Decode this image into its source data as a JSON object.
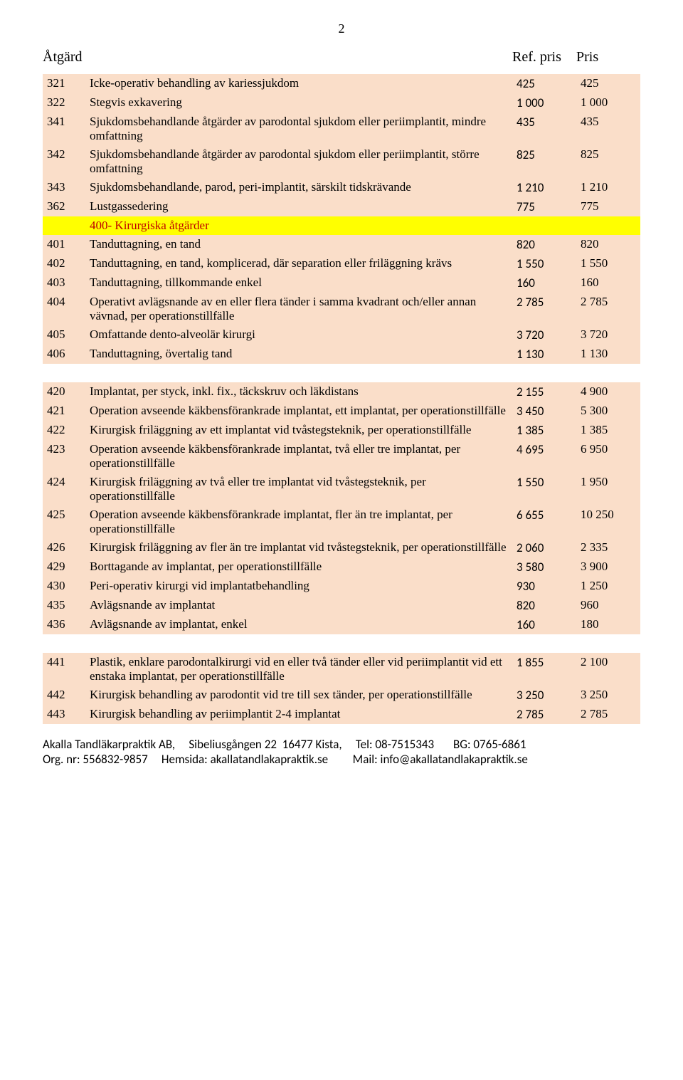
{
  "page_number": "2",
  "header": {
    "atgard": "Åtgärd",
    "refpris": "Ref. pris",
    "pris": "Pris"
  },
  "colors": {
    "row_normal": "#fadec9",
    "row_section": "#ffff00",
    "section_text": "#c00000",
    "row_white": "#ffffff"
  },
  "rows": [
    {
      "t": "n",
      "code": "321",
      "desc": "Icke-operativ behandling av kariessjukdom",
      "ref": "425",
      "pris": "425"
    },
    {
      "t": "n",
      "code": "322",
      "desc": "Stegvis exkavering",
      "ref": "1 000",
      "pris": "1 000"
    },
    {
      "t": "n",
      "code": "341",
      "desc": "Sjukdomsbehandlande åtgärder av parodontal sjukdom eller periimplantit, mindre omfattning",
      "ref": "435",
      "pris": "435"
    },
    {
      "t": "n",
      "code": "342",
      "desc": "Sjukdomsbehandlande åtgärder av parodontal sjukdom eller periimplantit, större omfattning",
      "ref": "825",
      "pris": "825"
    },
    {
      "t": "n",
      "code": "343",
      "desc": "Sjukdomsbehandlande, parod, peri-implantit, särskilt tidskrävande",
      "ref": "1 210",
      "pris": "1 210"
    },
    {
      "t": "n",
      "code": "362",
      "desc": "Lustgassedering",
      "ref": "775",
      "pris": "775"
    },
    {
      "t": "s",
      "code": "",
      "desc": "400- Kirurgiska åtgärder",
      "ref": "",
      "pris": ""
    },
    {
      "t": "n",
      "code": "401",
      "desc": "Tanduttagning, en tand",
      "ref": "820",
      "pris": "820"
    },
    {
      "t": "n",
      "code": "402",
      "desc": "Tanduttagning, en tand, komplicerad, där separation eller friläggning krävs",
      "ref": "1 550",
      "pris": "1 550"
    },
    {
      "t": "n",
      "code": "403",
      "desc": "Tanduttagning, tillkommande enkel",
      "ref": "160",
      "pris": "160"
    },
    {
      "t": "n",
      "code": "404",
      "desc": "Operativt avlägsnande av en eller flera tänder i samma kvadrant och/eller annan vävnad, per operationstillfälle",
      "ref": "2 785",
      "pris": "2 785"
    },
    {
      "t": "n",
      "code": "405",
      "desc": "Omfattande dento-alveolär kirurgi",
      "ref": "3 720",
      "pris": "3 720"
    },
    {
      "t": "n",
      "code": "406",
      "desc": "Tanduttagning, övertalig tand",
      "ref": "1 130",
      "pris": "1 130"
    },
    {
      "t": "w",
      "code": "",
      "desc": "",
      "ref": "",
      "pris": ""
    },
    {
      "t": "n",
      "code": "420",
      "desc": "Implantat, per styck, inkl. fix., täckskruv och läkdistans",
      "ref": "2 155",
      "pris": "4 900"
    },
    {
      "t": "n",
      "code": "421",
      "desc": "Operation avseende käkbensförankrade implantat, ett implantat, per operationstillfälle",
      "ref": "3 450",
      "pris": "5 300"
    },
    {
      "t": "n",
      "code": "422",
      "desc": "Kirurgisk friläggning av ett implantat vid tvåstegsteknik, per operationstillfälle",
      "ref": "1 385",
      "pris": "1 385"
    },
    {
      "t": "n",
      "code": "423",
      "desc": "Operation avseende käkbensförankrade implantat, två eller tre implantat, per operationstillfälle",
      "ref": "4 695",
      "pris": "6 950"
    },
    {
      "t": "n",
      "code": "424",
      "desc": "Kirurgisk friläggning av två eller tre implantat vid tvåstegsteknik, per operationstillfälle",
      "ref": "1 550",
      "pris": "1 950"
    },
    {
      "t": "n",
      "code": "425",
      "desc": "Operation avseende käkbensförankrade implantat, fler än tre implantat, per operationstillfälle",
      "ref": "6 655",
      "pris": "10 250"
    },
    {
      "t": "n",
      "code": "426",
      "desc": "Kirurgisk friläggning av fler än tre implantat vid tvåstegsteknik, per operationstillfälle",
      "ref": "2 060",
      "pris": "2 335"
    },
    {
      "t": "n",
      "code": "429",
      "desc": "Borttagande av implantat, per operationstillfälle",
      "ref": "3 580",
      "pris": "3 900"
    },
    {
      "t": "n",
      "code": "430",
      "desc": "Peri-operativ kirurgi vid implantatbehandling",
      "ref": "930",
      "pris": "1 250"
    },
    {
      "t": "n",
      "code": "435",
      "desc": "Avlägsnande av implantat",
      "ref": "820",
      "pris": "960"
    },
    {
      "t": "n",
      "code": "436",
      "desc": "Avlägsnande av implantat, enkel",
      "ref": "160",
      "pris": "180"
    },
    {
      "t": "w",
      "code": "",
      "desc": "",
      "ref": "",
      "pris": ""
    },
    {
      "t": "n",
      "code": "441",
      "desc": "Plastik, enklare parodontalkirurgi vid en eller två tänder eller vid periimplantit vid ett enstaka implantat, per operationstillfälle",
      "ref": "1 855",
      "pris": "2 100"
    },
    {
      "t": "n",
      "code": "442",
      "desc": "Kirurgisk behandling av parodontit vid tre till sex tänder, per operationstillfälle",
      "ref": "3 250",
      "pris": "3 250"
    },
    {
      "t": "n",
      "code": "443",
      "desc": "Kirurgisk behandling av periimplantit 2-4 implantat",
      "ref": "2 785",
      "pris": "2 785"
    }
  ],
  "footer": {
    "line1": "Akalla Tandläkarpraktik AB,     Sibeliusgången 22  16477 Kista,     Tel: 08-7515343       BG: 0765-6861",
    "line2": "Org. nr: 556832-9857     Hemsida: akallatandlakapraktik.se         Mail: info@akallatandlakapraktik.se"
  }
}
